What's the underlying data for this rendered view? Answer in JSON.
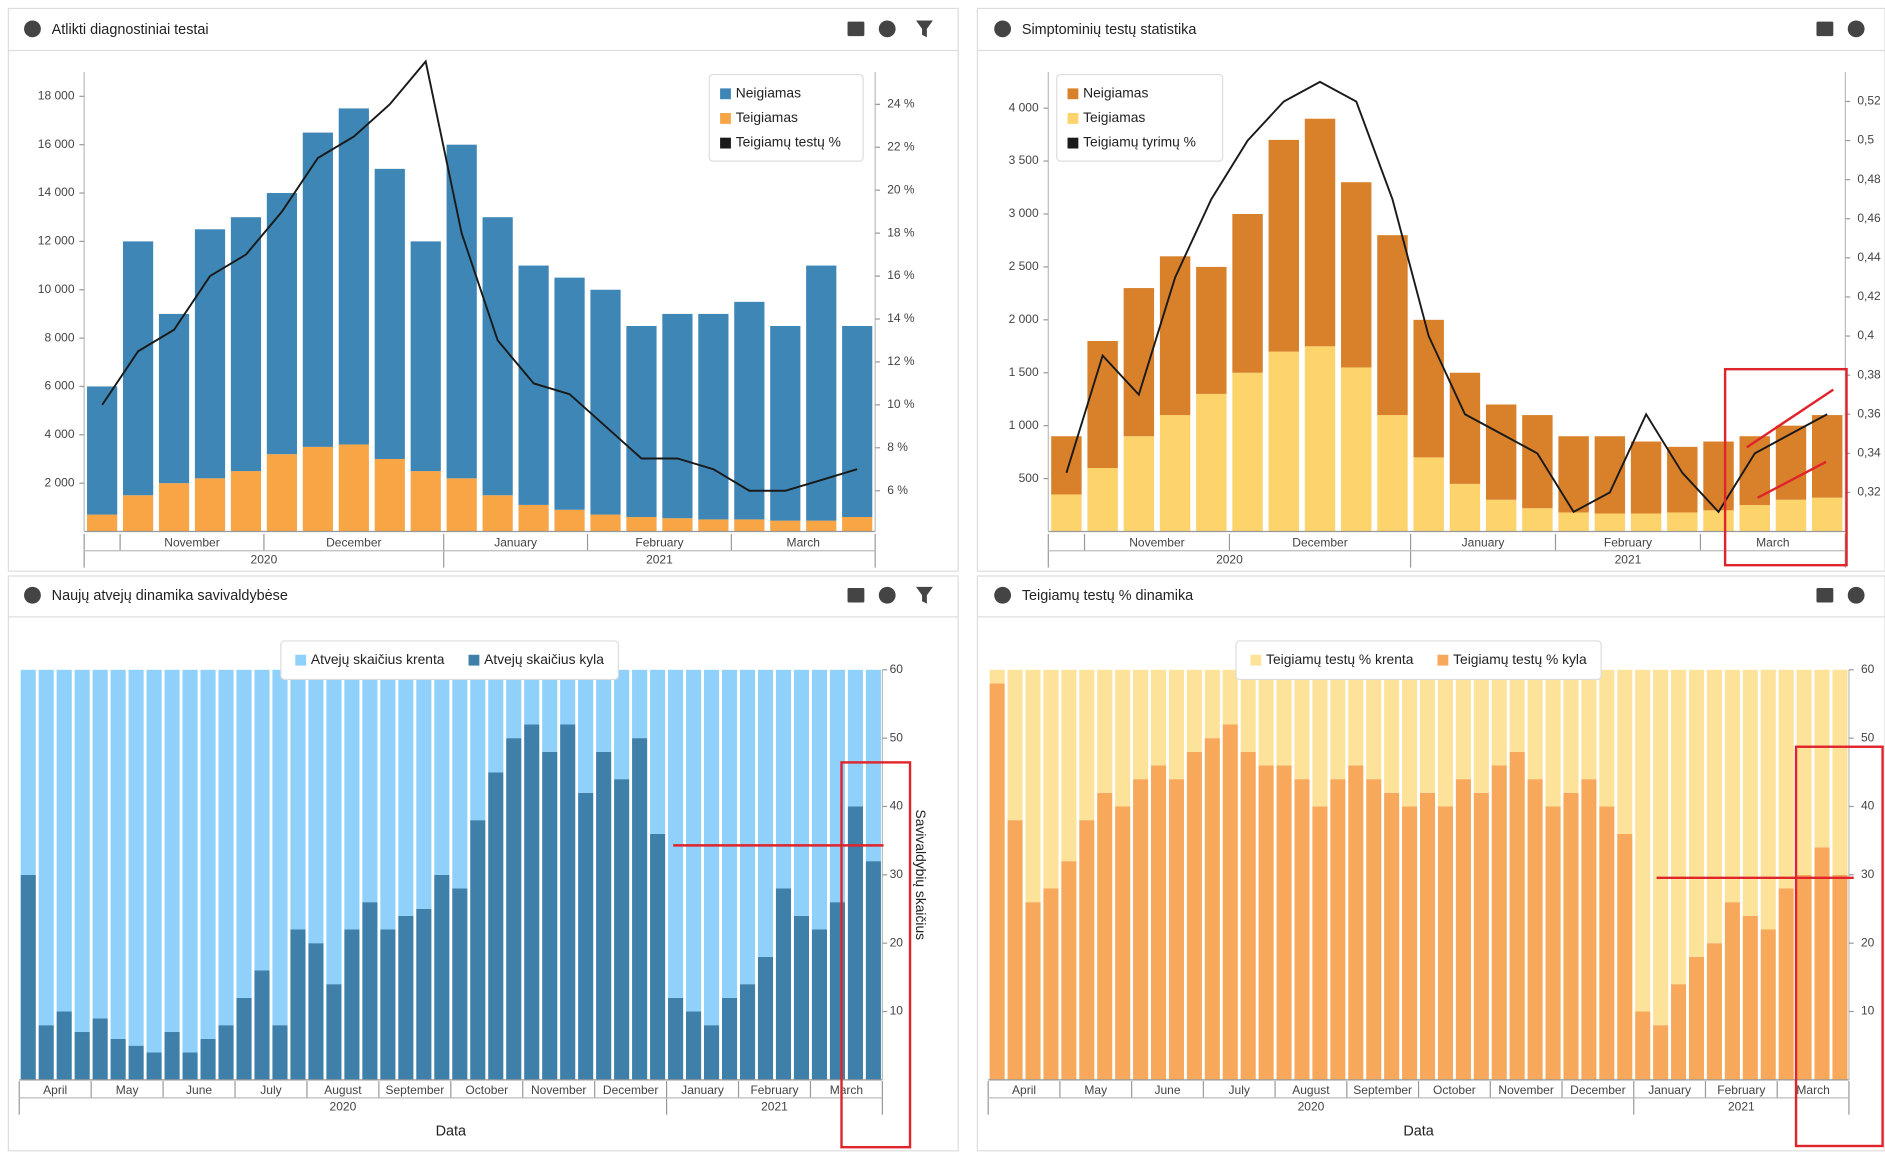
{
  "chart_data": [
    {
      "type": "bar",
      "stacked": true,
      "title": "Atlikti diagnostiniai testai",
      "categories": [
        null,
        "November",
        "November",
        "November",
        "November",
        "December",
        "December",
        "December",
        "December",
        "December",
        "January",
        "January",
        "January",
        "January",
        "February",
        "February",
        "February",
        "February",
        "March",
        "March",
        "March",
        "March"
      ],
      "years": [
        "2020",
        "2020",
        "2020",
        "2020",
        "2020",
        "2020",
        "2020",
        "2020",
        "2020",
        "2020",
        "2021",
        "2021",
        "2021",
        "2021",
        "2021",
        "2021",
        "2021",
        "2021",
        "2021",
        "2021",
        "2021",
        "2021"
      ],
      "series": [
        {
          "name": "Neigiamas",
          "color": "#3d86b6",
          "values": [
            5300,
            10500,
            7000,
            10300,
            10500,
            10800,
            13000,
            13900,
            12000,
            9500,
            13800,
            11500,
            9900,
            9600,
            9300,
            7900,
            8450,
            8500,
            9000,
            8050,
            10550,
            7900
          ]
        },
        {
          "name": "Teigiamas",
          "color": "#f7a545",
          "values": [
            700,
            1500,
            2000,
            2200,
            2500,
            3200,
            3500,
            3600,
            3000,
            2500,
            2200,
            1500,
            1100,
            900,
            700,
            600,
            550,
            500,
            500,
            450,
            450,
            600
          ]
        },
        {
          "name": "Teigiamų testų %",
          "color": "#1a1a1a",
          "type": "line",
          "axis": "y2",
          "values": [
            10,
            12.5,
            13.5,
            16,
            17,
            19,
            21.5,
            22.5,
            24,
            26,
            18,
            13,
            11,
            10.5,
            9,
            7.5,
            7.5,
            7,
            6,
            6,
            6.5,
            7
          ]
        }
      ],
      "ylim": [
        0,
        19000
      ],
      "yticks": [
        {
          "value": 2000,
          "label": "2 000"
        },
        {
          "value": 4000,
          "label": "4 000"
        },
        {
          "value": 6000,
          "label": "6 000"
        },
        {
          "value": 8000,
          "label": "8 000"
        },
        {
          "value": 10000,
          "label": "10 000"
        },
        {
          "value": 12000,
          "label": "12 000"
        },
        {
          "value": 14000,
          "label": "14 000"
        },
        {
          "value": 16000,
          "label": "16 000"
        },
        {
          "value": 18000,
          "label": "18 000"
        }
      ],
      "y2lim": [
        4.1,
        25.5
      ],
      "y2ticks": [
        {
          "value": 6,
          "label": "6 %"
        },
        {
          "value": 8,
          "label": "8 %"
        },
        {
          "value": 10,
          "label": "10 %"
        },
        {
          "value": 12,
          "label": "12 %"
        },
        {
          "value": 14,
          "label": "14 %"
        },
        {
          "value": 16,
          "label": "16 %"
        },
        {
          "value": 18,
          "label": "18 %"
        },
        {
          "value": 20,
          "label": "20 %"
        },
        {
          "value": 22,
          "label": "22 %"
        },
        {
          "value": 24,
          "label": "24 %"
        }
      ],
      "legend": "top-right"
    },
    {
      "type": "bar",
      "stacked": true,
      "title": "Simptominių testų statistika",
      "categories": [
        null,
        "November",
        "November",
        "November",
        "November",
        "December",
        "December",
        "December",
        "December",
        "December",
        "January",
        "January",
        "January",
        "January",
        "February",
        "February",
        "February",
        "February",
        "March",
        "March",
        "March",
        "March"
      ],
      "years": [
        "2020",
        "2020",
        "2020",
        "2020",
        "2020",
        "2020",
        "2020",
        "2020",
        "2020",
        "2020",
        "2021",
        "2021",
        "2021",
        "2021",
        "2021",
        "2021",
        "2021",
        "2021",
        "2021",
        "2021",
        "2021",
        "2021"
      ],
      "series": [
        {
          "name": "Neigiamas",
          "color": "#d8812a",
          "values": [
            550,
            1200,
            1400,
            1500,
            1200,
            1500,
            2000,
            2150,
            1750,
            1700,
            1300,
            1050,
            900,
            880,
            720,
            730,
            680,
            620,
            650,
            650,
            700,
            780
          ]
        },
        {
          "name": "Teigiamas",
          "color": "#fdd36b",
          "values": [
            350,
            600,
            900,
            1100,
            1300,
            1500,
            1700,
            1750,
            1550,
            1100,
            700,
            450,
            300,
            220,
            180,
            170,
            170,
            180,
            200,
            250,
            300,
            320
          ]
        },
        {
          "name": "Teigiamų tyrimų %",
          "color": "#1a1a1a",
          "type": "line",
          "axis": "y2",
          "values": [
            0.33,
            0.39,
            0.37,
            0.43,
            0.47,
            0.5,
            0.52,
            0.53,
            0.52,
            0.47,
            0.4,
            0.36,
            0.35,
            0.34,
            0.31,
            0.32,
            0.36,
            0.33,
            0.31,
            0.34,
            0.35,
            0.36
          ]
        }
      ],
      "ylim": [
        0,
        4340
      ],
      "yticks": [
        500,
        {
          "value": 1000,
          "label": "1 000"
        },
        {
          "value": 1500,
          "label": "1 500"
        },
        {
          "value": 2000,
          "label": "2 000"
        },
        {
          "value": 2500,
          "label": "2 500"
        },
        {
          "value": 3000,
          "label": "3 000"
        },
        {
          "value": 3500,
          "label": "3 500"
        },
        {
          "value": 4000,
          "label": "4 000"
        }
      ],
      "y2lim": [
        0.3,
        0.535
      ],
      "y2ticks": [
        {
          "value": 0.32,
          "label": "0,32"
        },
        {
          "value": 0.34,
          "label": "0,34"
        },
        {
          "value": 0.36,
          "label": "0,36"
        },
        {
          "value": 0.38,
          "label": "0,38"
        },
        {
          "value": 0.4,
          "label": "0,4"
        },
        {
          "value": 0.42,
          "label": "0,42"
        },
        {
          "value": 0.44,
          "label": "0,44"
        },
        {
          "value": 0.46,
          "label": "0,46"
        },
        {
          "value": 0.48,
          "label": "0,48"
        },
        {
          "value": 0.5,
          "label": "0,5"
        },
        {
          "value": 0.52,
          "label": "0,52"
        }
      ],
      "legend": "top-left"
    },
    {
      "type": "bar",
      "stacked": true,
      "title": "Naujų atvejų dinamika savivaldybėse",
      "x_label": "Data",
      "y_label": "Savivaldybių skaičius",
      "categories": [
        "April",
        "April",
        "April",
        "April",
        "May",
        "May",
        "May",
        "May",
        "June",
        "June",
        "June",
        "June",
        "July",
        "July",
        "July",
        "July",
        "August",
        "August",
        "August",
        "August",
        "September",
        "September",
        "September",
        "September",
        "October",
        "October",
        "October",
        "October",
        "November",
        "November",
        "November",
        "November",
        "December",
        "December",
        "December",
        "December",
        "January",
        "January",
        "January",
        "January",
        "February",
        "February",
        "February",
        "February",
        "March",
        "March",
        "March",
        "March"
      ],
      "years": [
        "2020",
        "2020",
        "2020",
        "2020",
        "2020",
        "2020",
        "2020",
        "2020",
        "2020",
        "2020",
        "2020",
        "2020",
        "2020",
        "2020",
        "2020",
        "2020",
        "2020",
        "2020",
        "2020",
        "2020",
        "2020",
        "2020",
        "2020",
        "2020",
        "2020",
        "2020",
        "2020",
        "2020",
        "2020",
        "2020",
        "2020",
        "2020",
        "2020",
        "2020",
        "2020",
        "2020",
        "2021",
        "2021",
        "2021",
        "2021",
        "2021",
        "2021",
        "2021",
        "2021",
        "2021",
        "2021",
        "2021",
        "2021"
      ],
      "series": [
        {
          "name": "Atvejų skaičius krenta",
          "color": "#8fd1fb",
          "values": [
            30,
            52,
            50,
            53,
            51,
            54,
            55,
            56,
            53,
            56,
            54,
            52,
            48,
            44,
            52,
            38,
            40,
            46,
            38,
            34,
            38,
            36,
            35,
            30,
            32,
            22,
            15,
            10,
            8,
            12,
            8,
            18,
            12,
            16,
            10,
            24,
            48,
            50,
            52,
            48,
            46,
            42,
            32,
            36,
            38,
            34,
            20,
            28
          ]
        },
        {
          "name": "Atvejų skaičius kyla",
          "color": "#3e80a9",
          "values": [
            30,
            8,
            10,
            7,
            9,
            6,
            5,
            4,
            7,
            4,
            6,
            8,
            12,
            16,
            8,
            22,
            20,
            14,
            22,
            26,
            22,
            24,
            25,
            30,
            28,
            38,
            45,
            50,
            52,
            48,
            52,
            42,
            48,
            44,
            50,
            36,
            12,
            10,
            8,
            12,
            14,
            18,
            28,
            24,
            22,
            26,
            40,
            32
          ]
        }
      ],
      "ylim": [
        0,
        60
      ],
      "yticks": [
        10,
        20,
        30,
        40,
        50,
        60
      ],
      "legend": "top"
    },
    {
      "type": "bar",
      "stacked": true,
      "title": "Teigiamų testų % dinamika",
      "x_label": "Data",
      "categories": [
        "April",
        "April",
        "April",
        "April",
        "May",
        "May",
        "May",
        "May",
        "June",
        "June",
        "June",
        "June",
        "July",
        "July",
        "July",
        "July",
        "August",
        "August",
        "August",
        "August",
        "September",
        "September",
        "September",
        "September",
        "October",
        "October",
        "October",
        "October",
        "November",
        "November",
        "November",
        "November",
        "December",
        "December",
        "December",
        "December",
        "January",
        "January",
        "January",
        "January",
        "February",
        "February",
        "February",
        "February",
        "March",
        "March",
        "March",
        "March"
      ],
      "years": [
        "2020",
        "2020",
        "2020",
        "2020",
        "2020",
        "2020",
        "2020",
        "2020",
        "2020",
        "2020",
        "2020",
        "2020",
        "2020",
        "2020",
        "2020",
        "2020",
        "2020",
        "2020",
        "2020",
        "2020",
        "2020",
        "2020",
        "2020",
        "2020",
        "2020",
        "2020",
        "2020",
        "2020",
        "2020",
        "2020",
        "2020",
        "2020",
        "2020",
        "2020",
        "2020",
        "2020",
        "2021",
        "2021",
        "2021",
        "2021",
        "2021",
        "2021",
        "2021",
        "2021",
        "2021",
        "2021",
        "2021",
        "2021"
      ],
      "series": [
        {
          "name": "Teigiamų testų % krenta",
          "color": "#fde29a",
          "values": [
            2,
            22,
            34,
            32,
            28,
            22,
            18,
            20,
            16,
            14,
            16,
            12,
            10,
            8,
            12,
            14,
            14,
            16,
            20,
            16,
            14,
            16,
            18,
            20,
            18,
            20,
            16,
            18,
            14,
            12,
            16,
            20,
            18,
            16,
            20,
            24,
            50,
            52,
            46,
            42,
            40,
            34,
            36,
            38,
            32,
            30,
            26,
            30
          ]
        },
        {
          "name": "Teigiamų testų % kyla",
          "color": "#f7a85a",
          "values": [
            58,
            38,
            26,
            28,
            32,
            38,
            42,
            40,
            44,
            46,
            44,
            48,
            50,
            52,
            48,
            46,
            46,
            44,
            40,
            44,
            46,
            44,
            42,
            40,
            42,
            40,
            44,
            42,
            46,
            48,
            44,
            40,
            42,
            44,
            40,
            36,
            10,
            8,
            14,
            18,
            20,
            26,
            24,
            22,
            28,
            30,
            34,
            30
          ]
        }
      ],
      "ylim": [
        0,
        60
      ],
      "yticks": [
        10,
        20,
        30,
        40,
        50,
        60
      ],
      "legend": "top"
    }
  ]
}
